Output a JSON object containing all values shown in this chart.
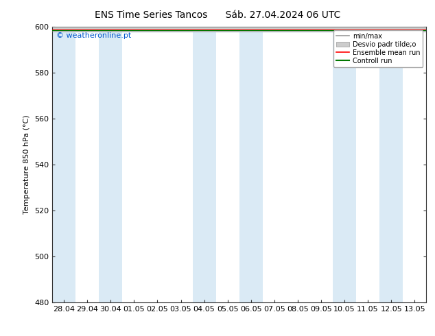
{
  "title_left": "ENS Time Series Tancos",
  "title_right": "Sáb. 27.04.2024 06 UTC",
  "ylabel": "Temperature 850 hPa (°C)",
  "ylim": [
    480,
    600
  ],
  "yticks": [
    480,
    500,
    520,
    540,
    560,
    580,
    600
  ],
  "x_labels": [
    "28.04",
    "29.04",
    "30.04",
    "01.05",
    "02.05",
    "03.05",
    "04.05",
    "05.05",
    "06.05",
    "07.05",
    "08.05",
    "09.05",
    "10.05",
    "11.05",
    "12.05",
    "13.05"
  ],
  "watermark": "© weatheronline.pt",
  "watermark_color": "#0055cc",
  "bg_color": "#ffffff",
  "plot_bg_color": "#ffffff",
  "band_color": "#daeaf5",
  "band_indices": [
    0,
    2,
    6,
    8,
    12,
    14
  ],
  "ensemble_fill_color": "#c0d8ee",
  "ensemble_line_color": "#ff0000",
  "control_line_color": "#007700",
  "minmax_color": "#999999",
  "std_fill_color": "#cccccc",
  "legend_label_minmax": "min/max",
  "legend_label_std": "Desvio padr tilde;o",
  "legend_label_ens": "Ensemble mean run",
  "legend_label_ctrl": "Controll run",
  "title_fontsize": 10,
  "axis_fontsize": 8,
  "tick_fontsize": 8,
  "watermark_fontsize": 8
}
